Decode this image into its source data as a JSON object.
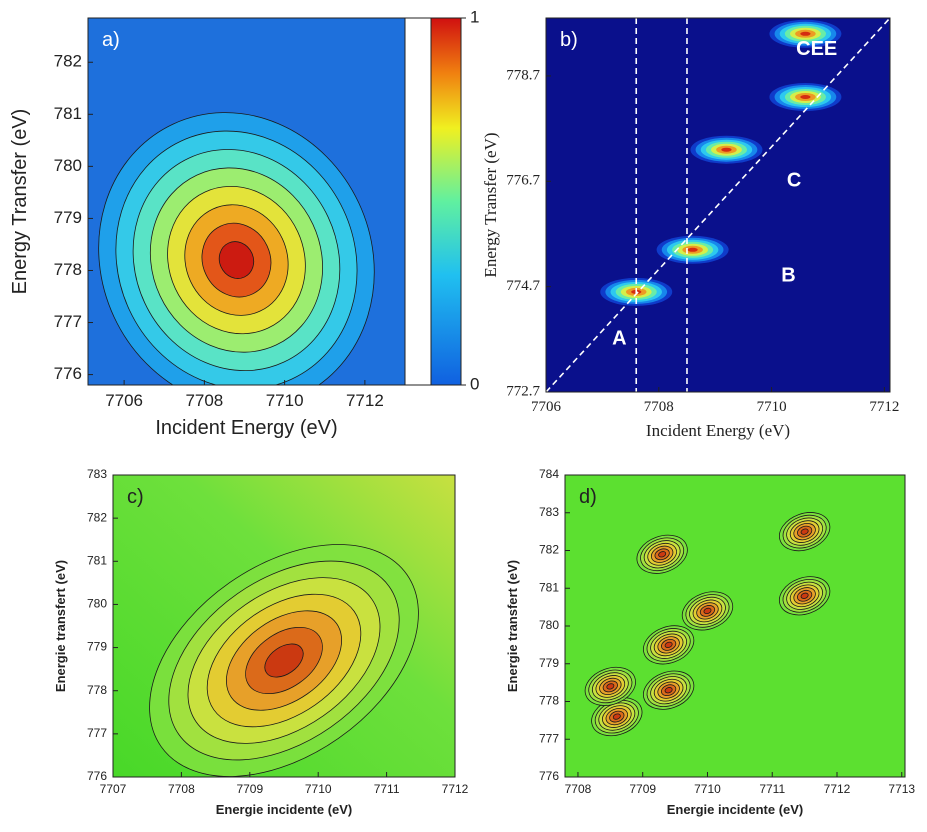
{
  "chart_data": [
    {
      "type": "contour",
      "panel_label": "a)",
      "xlabel": "Incident Energy  (eV)",
      "ylabel": "Energy Transfer (eV)",
      "xlim": [
        7705.1,
        7713.0
      ],
      "ylim": [
        775.8,
        782.85
      ],
      "xticks": [
        7706,
        7708,
        7710,
        7712
      ],
      "yticks": [
        776,
        777,
        778,
        779,
        780,
        781,
        782
      ],
      "peaks": [
        {
          "x": 7708.8,
          "y": 778.2
        }
      ],
      "colorbar": {
        "ticks": [
          0,
          1
        ]
      }
    },
    {
      "type": "contour",
      "panel_label": "b)",
      "xlabel": "Incident Energy (eV)",
      "ylabel": "Energy Transfer (eV)",
      "xlim": [
        7706,
        7712.1
      ],
      "ylim": [
        772.7,
        779.8
      ],
      "xticks": [
        7706,
        7708,
        7710,
        7712
      ],
      "yticks": [
        772.7,
        774.7,
        776.7,
        778.7
      ],
      "peaks": [
        {
          "x": 7707.6,
          "y": 774.6
        },
        {
          "x": 7708.6,
          "y": 775.4
        },
        {
          "x": 7709.2,
          "y": 777.3
        },
        {
          "x": 7710.6,
          "y": 779.5
        },
        {
          "x": 7710.6,
          "y": 778.3
        }
      ],
      "vlines": [
        7707.6,
        7708.5
      ],
      "annotations": [
        {
          "text": "A",
          "x": 7707.3,
          "y": 773.7
        },
        {
          "text": "B",
          "x": 7710.3,
          "y": 774.9
        },
        {
          "text": "C",
          "x": 7710.4,
          "y": 776.7
        },
        {
          "text": "CEE",
          "x": 7710.8,
          "y": 779.2
        }
      ]
    },
    {
      "type": "contour",
      "panel_label": "c)",
      "xlabel": "Energie incidente (eV)",
      "ylabel": "Energie transfert (eV)",
      "xlim": [
        7707,
        7712
      ],
      "ylim": [
        776,
        783
      ],
      "xticks": [
        7707,
        7708,
        7709,
        7710,
        7711,
        7712
      ],
      "yticks": [
        776,
        777,
        778,
        779,
        780,
        781,
        782,
        783
      ],
      "peaks": [
        {
          "x": 7709.5,
          "y": 778.7
        }
      ]
    },
    {
      "type": "contour",
      "panel_label": "d)",
      "xlabel": "Energie incidente (eV)",
      "ylabel": "Energie transfert (eV)",
      "xlim": [
        7707.8,
        7713.05
      ],
      "ylim": [
        776,
        784
      ],
      "xticks": [
        7708,
        7709,
        7710,
        7711,
        7712,
        7713
      ],
      "yticks": [
        776,
        777,
        778,
        779,
        780,
        781,
        782,
        783,
        784
      ],
      "peaks": [
        {
          "x": 7708.6,
          "y": 777.6
        },
        {
          "x": 7709.4,
          "y": 778.3
        },
        {
          "x": 7709.4,
          "y": 779.5
        },
        {
          "x": 7710.0,
          "y": 780.4
        },
        {
          "x": 7709.3,
          "y": 781.9
        },
        {
          "x": 7711.5,
          "y": 780.8
        },
        {
          "x": 7711.5,
          "y": 782.5
        },
        {
          "x": 7708.5,
          "y": 778.4
        }
      ]
    }
  ]
}
